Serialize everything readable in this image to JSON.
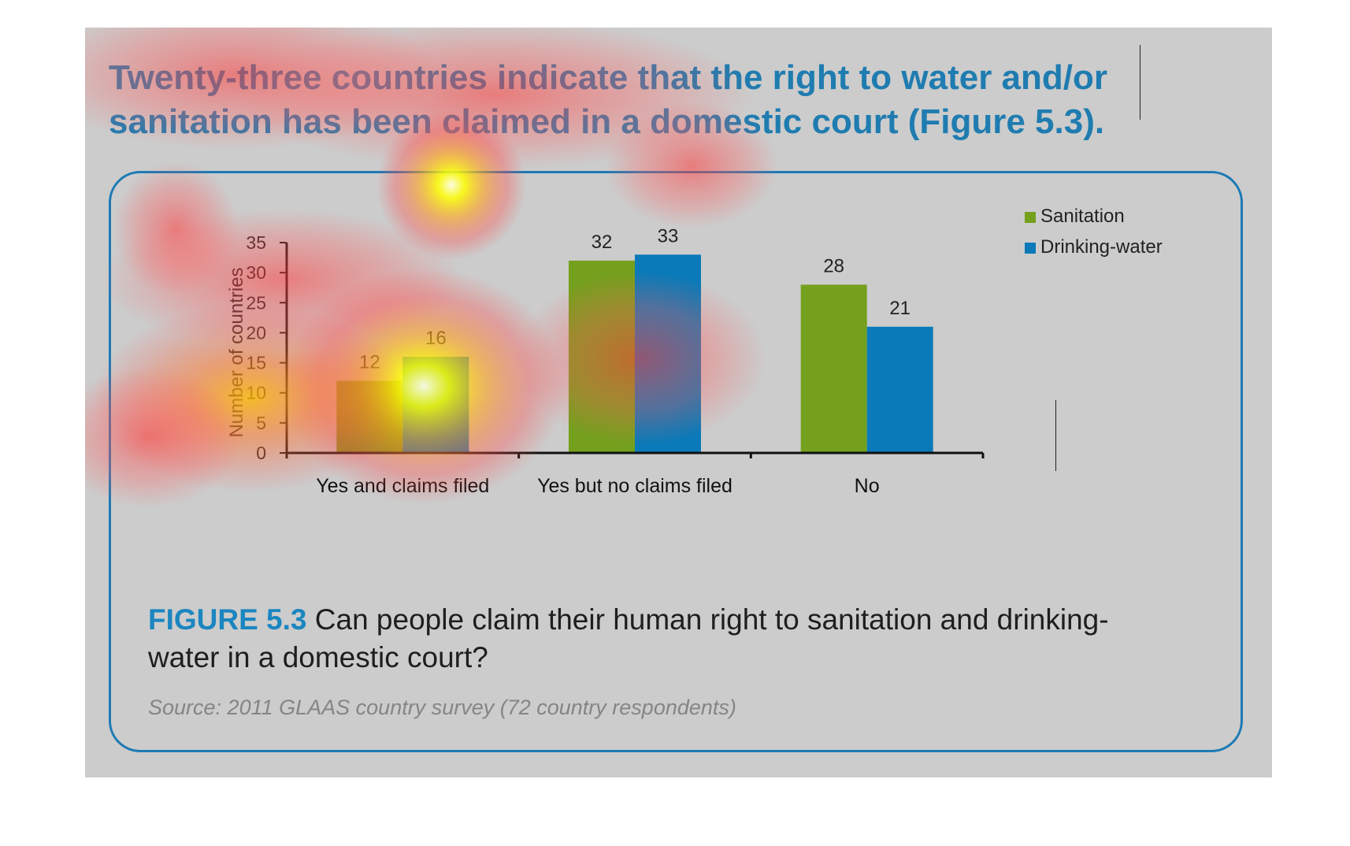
{
  "headline": "Twenty-three countries indicate that the right to water and/or sanitation has been claimed in a domestic court (Figure 5.3).",
  "figure": {
    "label": "FIGURE 5.3",
    "caption": "Can people claim their human right to sanitation and drinking-water in a domestic court?",
    "source": "Source: 2011 GLAAS country survey (72 country respondents)"
  },
  "colors": {
    "sanitation": "#74a01e",
    "drinking_water": "#0a7ab8",
    "axis": "#111111",
    "headline": "#1f7cb0",
    "panel_border": "#1d7ab5"
  },
  "chart_data": {
    "type": "bar",
    "categories": [
      "Yes and claims filed",
      "Yes but no claims filed",
      "No"
    ],
    "series": [
      {
        "name": "Sanitation",
        "values": [
          12,
          32,
          28
        ]
      },
      {
        "name": "Drinking-water",
        "values": [
          16,
          33,
          21
        ]
      }
    ],
    "ylabel": "Number of countries",
    "yticks": [
      0,
      5,
      10,
      15,
      20,
      25,
      30,
      35
    ],
    "ylim": [
      0,
      35
    ],
    "data_labels": true,
    "legend_position": "top-right",
    "grid": false
  },
  "overlay": {
    "type": "attention heatmap"
  }
}
